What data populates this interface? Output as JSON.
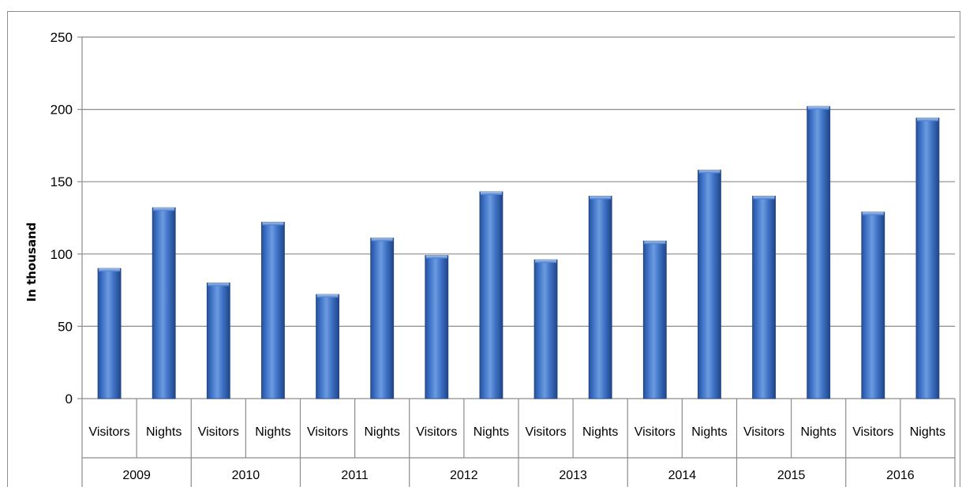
{
  "chart_data": {
    "type": "bar",
    "title": "",
    "ylabel": "In thousand",
    "xlabel": "",
    "ylim": [
      0,
      250
    ],
    "yticks": [
      0,
      50,
      100,
      150,
      200,
      250
    ],
    "grid": true,
    "legend": "none",
    "bar_color": "#3a6fc2",
    "groups": [
      "2009",
      "2010",
      "2011",
      "2012",
      "2013",
      "2014",
      "2015",
      "2016"
    ],
    "subcategories": [
      "Visitors",
      "Nights"
    ],
    "categories": [
      "Visitors",
      "Nights",
      "Visitors",
      "Nights",
      "Visitors",
      "Nights",
      "Visitors",
      "Nights",
      "Visitors",
      "Nights",
      "Visitors",
      "Nights",
      "Visitors",
      "Nights",
      "Visitors",
      "Nights"
    ],
    "values": [
      90,
      132,
      80,
      122,
      72,
      111,
      99,
      143,
      96,
      140,
      109,
      158,
      140,
      202,
      129,
      194
    ]
  }
}
